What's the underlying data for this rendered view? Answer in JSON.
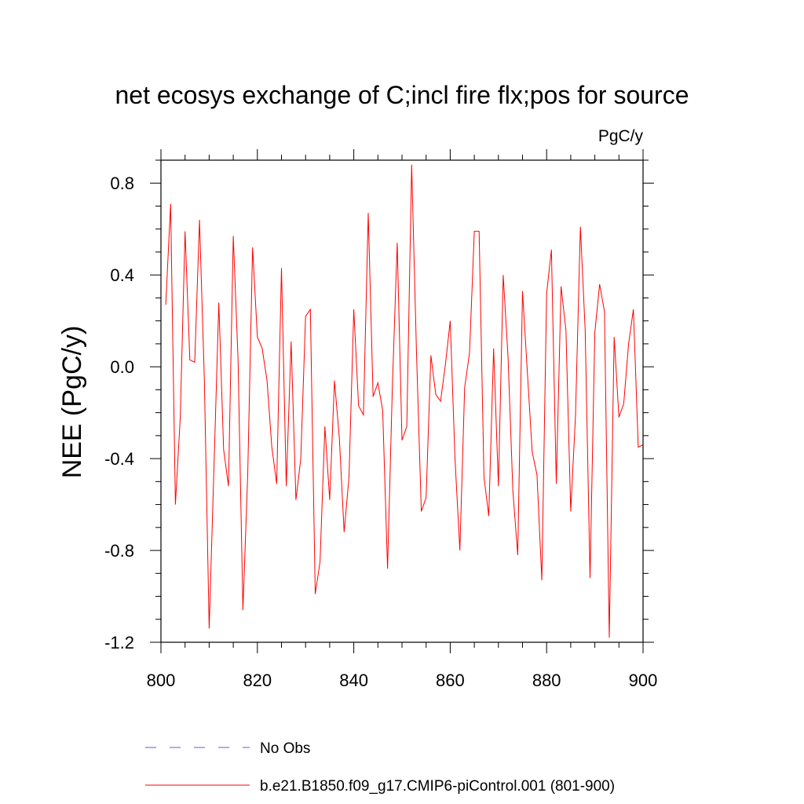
{
  "chart_data": {
    "type": "line",
    "title": "net ecosys exchange of C;incl fire flx;pos for source",
    "units_label": "PgC/y",
    "xlabel": "",
    "ylabel": "NEE  (PgC/y)",
    "xlim": [
      800,
      900
    ],
    "ylim": [
      -1.2,
      0.9
    ],
    "x_ticks": [
      800,
      820,
      840,
      860,
      880,
      900
    ],
    "x_tick_labels": [
      "800",
      "820",
      "840",
      "860",
      "880",
      "900"
    ],
    "y_ticks": [
      -1.2,
      -0.8,
      -0.4,
      0.0,
      0.4,
      0.8
    ],
    "y_tick_labels": [
      "-1.2",
      "-0.8",
      "-0.4",
      "0.0",
      "0.4",
      "0.8"
    ],
    "grid": false,
    "legend_position": "bottom",
    "series": [
      {
        "name": "No Obs",
        "color": "#6a5acd",
        "style": "dashed",
        "x": [],
        "y": []
      },
      {
        "name": "b.e21.B1850.f09_g17.CMIP6-piControl.001 (801-900)",
        "color": "#ff0000",
        "style": "solid",
        "x": [
          801,
          802,
          803,
          804,
          805,
          806,
          807,
          808,
          809,
          810,
          811,
          812,
          813,
          814,
          815,
          816,
          817,
          818,
          819,
          820,
          821,
          822,
          823,
          824,
          825,
          826,
          827,
          828,
          829,
          830,
          831,
          832,
          833,
          834,
          835,
          836,
          837,
          838,
          839,
          840,
          841,
          842,
          843,
          844,
          845,
          846,
          847,
          848,
          849,
          850,
          851,
          852,
          853,
          854,
          855,
          856,
          857,
          858,
          859,
          860,
          861,
          862,
          863,
          864,
          865,
          866,
          867,
          868,
          869,
          870,
          871,
          872,
          873,
          874,
          875,
          876,
          877,
          878,
          879,
          880,
          881,
          882,
          883,
          884,
          885,
          886,
          887,
          888,
          889,
          890,
          891,
          892,
          893,
          894,
          895,
          896,
          897,
          898,
          899,
          900
        ],
        "y": [
          0.27,
          0.71,
          -0.6,
          -0.22,
          0.59,
          0.03,
          0.02,
          0.64,
          -0.06,
          -1.14,
          -0.44,
          0.28,
          -0.36,
          -0.52,
          0.57,
          0.03,
          -1.06,
          -0.47,
          0.52,
          0.13,
          0.08,
          -0.06,
          -0.35,
          -0.51,
          0.43,
          -0.52,
          0.11,
          -0.58,
          -0.4,
          0.22,
          0.25,
          -0.99,
          -0.85,
          -0.26,
          -0.58,
          -0.06,
          -0.31,
          -0.72,
          -0.48,
          0.25,
          -0.17,
          -0.21,
          0.67,
          -0.13,
          -0.07,
          -0.19,
          -0.88,
          -0.09,
          0.54,
          -0.32,
          -0.26,
          0.88,
          0.07,
          -0.63,
          -0.57,
          0.05,
          -0.12,
          -0.15,
          0.01,
          0.2,
          -0.4,
          -0.8,
          -0.09,
          0.06,
          0.59,
          0.59,
          -0.48,
          -0.65,
          0.08,
          -0.52,
          0.4,
          0.04,
          -0.54,
          -0.82,
          0.33,
          -0.02,
          -0.37,
          -0.47,
          -0.93,
          0.32,
          0.51,
          -0.51,
          0.35,
          0.16,
          -0.63,
          -0.21,
          0.61,
          0.16,
          -0.92,
          0.15,
          0.36,
          0.24,
          -1.18,
          0.13,
          -0.22,
          -0.16,
          0.1,
          0.25,
          -0.35,
          -0.34
        ]
      }
    ]
  }
}
